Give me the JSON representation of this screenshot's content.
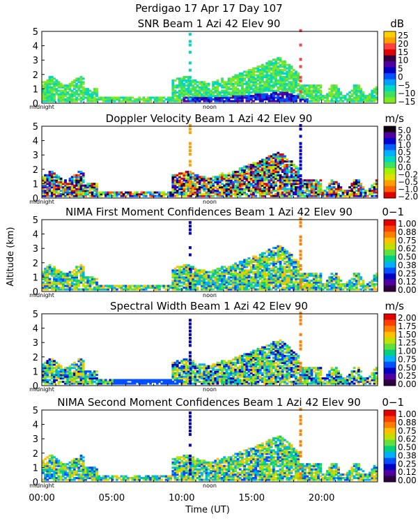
{
  "figure": {
    "title": "Perdigao  17 Apr 17 Day 107",
    "y_axis_label": "Altitude (km)",
    "x_axis_label": "Time (UT)",
    "x_ticks": [
      "00:00",
      "05:00",
      "10:00",
      "15:00",
      "20:00"
    ],
    "midnight_label": "midnight",
    "noon_label": "noon"
  },
  "chart_data": [
    {
      "type": "heatmap",
      "title": "SNR Beam 1 Azi  42 Elev 90",
      "unit": "dB",
      "xlabel": "Time (UT)",
      "ylabel": "Altitude (km)",
      "xlim": [
        0,
        24
      ],
      "ylim": [
        0,
        5
      ],
      "y_ticks": [
        "0",
        "1",
        "2",
        "3",
        "4",
        "5"
      ],
      "colorbar_labels": [
        "25",
        "20",
        "15",
        "10",
        "5",
        "0",
        "−5",
        "−10",
        "−15"
      ],
      "colorbar_colors": [
        "#ffd000",
        "#ffa000",
        "#ff4040",
        "#e00000",
        "#300040",
        "#5000a0",
        "#0000c0",
        "#0050ff",
        "#00a0ff",
        "#00d8c0",
        "#40e060",
        "#80e820"
      ]
    },
    {
      "type": "heatmap",
      "title": "Doppler Velocity Beam 1 Azi  42 Elev 90",
      "unit": "m/s",
      "xlabel": "Time (UT)",
      "ylabel": "Altitude (km)",
      "xlim": [
        0,
        24
      ],
      "ylim": [
        0,
        5
      ],
      "y_ticks": [
        "0",
        "1",
        "2",
        "3",
        "4",
        "5"
      ],
      "colorbar_labels": [
        "5.0",
        "2.0",
        "1.0",
        "0.5",
        "0.2",
        "0.0",
        "−0.2",
        "−0.5",
        "−1.0",
        "−2.0"
      ],
      "colorbar_colors": [
        "#100010",
        "#5000a0",
        "#0000d0",
        "#0060ff",
        "#00b0ff",
        "#00d8c0",
        "#40e060",
        "#a0f000",
        "#e0e000",
        "#ffa000",
        "#ff6000",
        "#e00000"
      ]
    },
    {
      "type": "heatmap",
      "title": "NIMA First Moment Confidences Beam 1 Azi  42 Elev 90",
      "unit": "0−1",
      "xlabel": "Time (UT)",
      "ylabel": "Altitude (km)",
      "xlim": [
        0,
        24
      ],
      "ylim": [
        0,
        5
      ],
      "y_ticks": [
        "0",
        "1",
        "2",
        "3",
        "4",
        "5"
      ],
      "colorbar_labels": [
        "1.00",
        "0.88",
        "0.75",
        "0.62",
        "0.50",
        "0.38",
        "0.25",
        "0.12",
        "0.00"
      ],
      "colorbar_colors": [
        "#e00000",
        "#ff4000",
        "#ff8000",
        "#ffc000",
        "#c0e000",
        "#60e040",
        "#00d080",
        "#00b0ff",
        "#0050ff",
        "#0000c0",
        "#5000a0",
        "#300040"
      ]
    },
    {
      "type": "heatmap",
      "title": "Spectral Width Beam 1 Azi  42 Elev 90",
      "unit": "m/s",
      "xlabel": "Time (UT)",
      "ylabel": "Altitude (km)",
      "xlim": [
        0,
        24
      ],
      "ylim": [
        0,
        5
      ],
      "y_ticks": [
        "0",
        "1",
        "2",
        "3",
        "4",
        "5"
      ],
      "colorbar_labels": [
        "2.00",
        "1.75",
        "1.50",
        "1.25",
        "1.00",
        "0.75",
        "0.50",
        "0.25",
        "0.00"
      ],
      "colorbar_colors": [
        "#e00000",
        "#ff4000",
        "#ff8000",
        "#ffc000",
        "#c0e000",
        "#60e040",
        "#00d080",
        "#00b0ff",
        "#0050ff",
        "#0000c0",
        "#5000a0",
        "#300040"
      ]
    },
    {
      "type": "heatmap",
      "title": "NIMA Second Moment Confidences Beam 1 Azi  42 Elev 90",
      "unit": "0−1",
      "xlabel": "Time (UT)",
      "ylabel": "Altitude (km)",
      "xlim": [
        0,
        24
      ],
      "ylim": [
        0,
        5
      ],
      "y_ticks": [
        "0",
        "1",
        "2",
        "3",
        "4",
        "5"
      ],
      "colorbar_labels": [
        "1.00",
        "0.88",
        "0.75",
        "0.62",
        "0.50",
        "0.38",
        "0.25",
        "0.12",
        "0.00"
      ],
      "colorbar_colors": [
        "#e00000",
        "#ff4000",
        "#ff8000",
        "#ffc000",
        "#c0e000",
        "#60e040",
        "#00d080",
        "#00b0ff",
        "#0050ff",
        "#0000c0",
        "#5000a0",
        "#300040"
      ]
    }
  ]
}
